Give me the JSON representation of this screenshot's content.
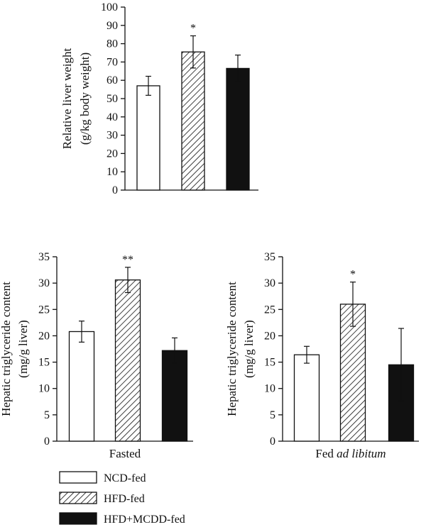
{
  "legend": [
    {
      "label": "NCD-fed",
      "fill": "white"
    },
    {
      "label": "HFD-fed",
      "fill": "hatch"
    },
    {
      "label": "HFD+MCDD-fed",
      "fill": "#111111"
    }
  ],
  "chart_data": [
    {
      "type": "bar",
      "ylabel": [
        "Relative liver weight",
        "(g/kg body weight)"
      ],
      "xlabel": "",
      "ylim": [
        0,
        100
      ],
      "yticks": [
        0,
        10,
        20,
        30,
        40,
        50,
        60,
        70,
        80,
        90,
        100
      ],
      "categories": [
        "NCD-fed",
        "HFD-fed",
        "HFD+MCDD-fed"
      ],
      "values": [
        57,
        75.5,
        66.5
      ],
      "errors": [
        5.2,
        8.8,
        7.3
      ],
      "significance": [
        "",
        "*",
        ""
      ]
    },
    {
      "type": "bar",
      "ylabel": [
        "Hepatic triglyceride content",
        "(mg/g liver)"
      ],
      "xlabel": "Fasted",
      "ylim": [
        0,
        35
      ],
      "yticks": [
        0,
        5,
        10,
        15,
        20,
        25,
        30,
        35
      ],
      "categories": [
        "NCD-fed",
        "HFD-fed",
        "HFD+MCDD-fed"
      ],
      "values": [
        20.8,
        30.6,
        17.2
      ],
      "errors": [
        2.0,
        2.4,
        2.4
      ],
      "significance": [
        "",
        "**",
        ""
      ]
    },
    {
      "type": "bar",
      "ylabel": [
        "Hepatic triglyceride content",
        "(mg/g liver)"
      ],
      "xlabel": "Fed ad libitum",
      "xlabel_parts": [
        {
          "text": "Fed ",
          "italic": false
        },
        {
          "text": "ad libitum",
          "italic": true
        }
      ],
      "ylim": [
        0,
        35
      ],
      "yticks": [
        0,
        5,
        10,
        15,
        20,
        25,
        30,
        35
      ],
      "categories": [
        "NCD-fed",
        "HFD-fed",
        "HFD+MCDD-fed"
      ],
      "values": [
        16.4,
        26.0,
        14.5
      ],
      "errors": [
        1.6,
        4.2,
        6.9
      ],
      "significance": [
        "",
        "*",
        ""
      ]
    }
  ]
}
